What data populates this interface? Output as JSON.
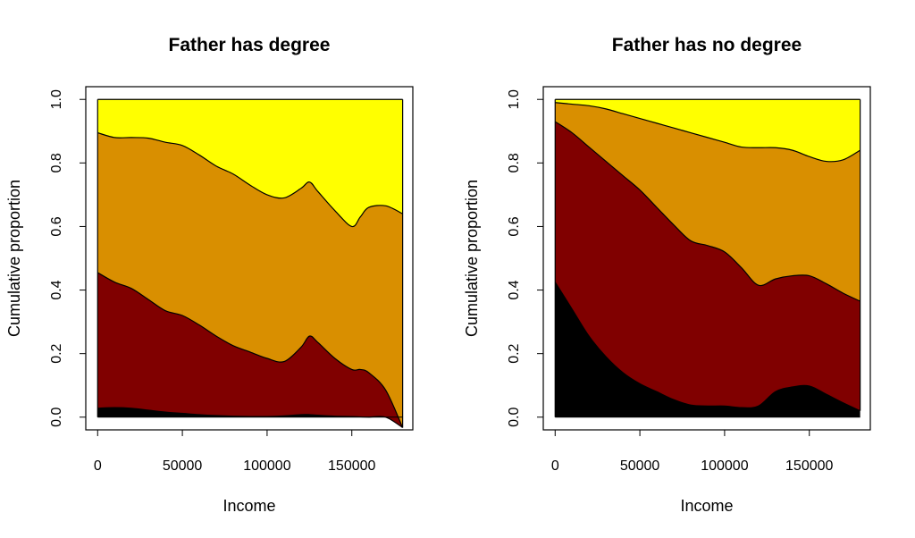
{
  "chart_data": [
    {
      "type": "area",
      "title": "Father has degree",
      "xlabel": "Income",
      "ylabel": "Cumulative proportion",
      "xlim": [
        0,
        180000
      ],
      "ylim": [
        0,
        1
      ],
      "x_ticks": [
        "0",
        "50000",
        "100000",
        "150000"
      ],
      "y_ticks": [
        "0.0",
        "0.2",
        "0.4",
        "0.6",
        "0.8",
        "1.0"
      ],
      "grid": false,
      "colors": [
        "#000000",
        "#800000",
        "#D98F00",
        "#FFFF00"
      ],
      "x": [
        0,
        10000,
        20000,
        30000,
        40000,
        50000,
        60000,
        70000,
        80000,
        90000,
        100000,
        110000,
        120000,
        125000,
        130000,
        140000,
        150000,
        155000,
        160000,
        170000,
        180000
      ],
      "boundaries": [
        {
          "values": [
            0.028,
            0.03,
            0.028,
            0.022,
            0.016,
            0.012,
            0.008,
            0.005,
            0.003,
            0.002,
            0.002,
            0.004,
            0.008,
            0.008,
            0.006,
            0.003,
            0.002,
            0.001,
            0.0,
            0.0,
            -0.033
          ]
        },
        {
          "values": [
            0.455,
            0.425,
            0.405,
            0.37,
            0.335,
            0.32,
            0.29,
            0.255,
            0.225,
            0.205,
            0.185,
            0.175,
            0.22,
            0.255,
            0.235,
            0.185,
            0.15,
            0.15,
            0.14,
            0.085,
            -0.033
          ]
        },
        {
          "values": [
            0.895,
            0.88,
            0.88,
            0.878,
            0.865,
            0.855,
            0.825,
            0.79,
            0.765,
            0.73,
            0.7,
            0.69,
            0.72,
            0.74,
            0.71,
            0.65,
            0.6,
            0.63,
            0.66,
            0.665,
            0.64
          ]
        },
        {
          "values": [
            1,
            1,
            1,
            1,
            1,
            1,
            1,
            1,
            1,
            1,
            1,
            1,
            1,
            1,
            1,
            1,
            1,
            1,
            1,
            1,
            1
          ]
        }
      ]
    },
    {
      "type": "area",
      "title": "Father has no degree",
      "xlabel": "Income",
      "ylabel": "Cumulative proportion",
      "xlim": [
        0,
        180000
      ],
      "ylim": [
        0,
        1
      ],
      "x_ticks": [
        "0",
        "50000",
        "100000",
        "150000"
      ],
      "y_ticks": [
        "0.0",
        "0.2",
        "0.4",
        "0.6",
        "0.8",
        "1.0"
      ],
      "grid": false,
      "colors": [
        "#000000",
        "#800000",
        "#D98F00",
        "#FFFF00"
      ],
      "x": [
        0,
        10000,
        20000,
        30000,
        40000,
        50000,
        60000,
        70000,
        80000,
        90000,
        100000,
        110000,
        120000,
        130000,
        140000,
        150000,
        160000,
        170000,
        180000
      ],
      "boundaries": [
        {
          "values": [
            0.425,
            0.34,
            0.255,
            0.19,
            0.14,
            0.105,
            0.08,
            0.055,
            0.038,
            0.035,
            0.035,
            0.03,
            0.035,
            0.08,
            0.095,
            0.098,
            0.072,
            0.045,
            0.02
          ]
        },
        {
          "values": [
            0.93,
            0.895,
            0.85,
            0.805,
            0.76,
            0.715,
            0.66,
            0.605,
            0.555,
            0.54,
            0.52,
            0.47,
            0.415,
            0.435,
            0.445,
            0.445,
            0.42,
            0.39,
            0.365
          ]
        },
        {
          "values": [
            0.99,
            0.985,
            0.98,
            0.97,
            0.955,
            0.94,
            0.925,
            0.91,
            0.895,
            0.88,
            0.865,
            0.85,
            0.848,
            0.848,
            0.84,
            0.82,
            0.805,
            0.81,
            0.84
          ]
        },
        {
          "values": [
            1,
            1,
            1,
            1,
            1,
            1,
            1,
            1,
            1,
            1,
            1,
            1,
            1,
            1,
            1,
            1,
            1,
            1,
            1
          ]
        }
      ]
    }
  ]
}
